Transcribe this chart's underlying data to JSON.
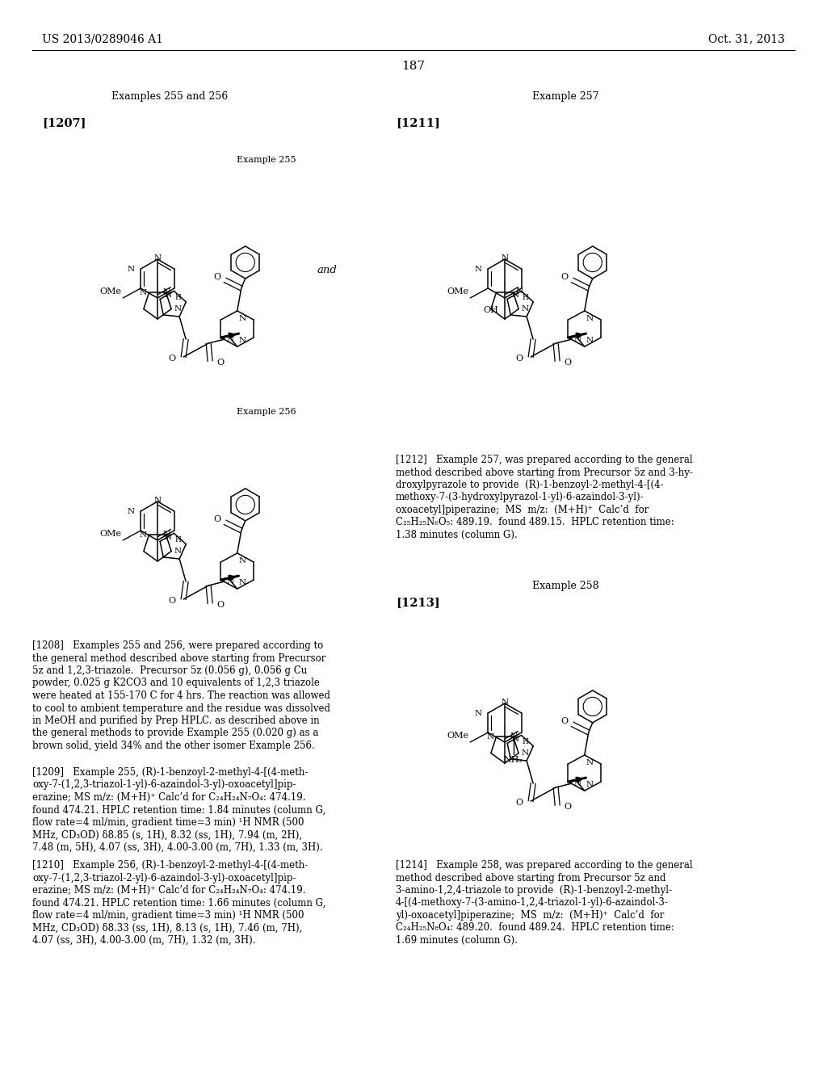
{
  "bg_color": "#ffffff",
  "header_left": "US 2013/0289046 A1",
  "header_right": "Oct. 31, 2013",
  "page_number": "187",
  "sec_left": "Examples 255 and 256",
  "sec_right": "Example 257",
  "lbl_1207": "[1207]",
  "lbl_1211": "[1211]",
  "lbl_1212": "[1212]",
  "lbl_1213": "[1213]",
  "ex255_lbl": "Example 255",
  "ex256_lbl": "Example 256",
  "ex258_lbl": "Example 258",
  "and_txt": "and",
  "t1212": [
    "[1212]   Example 257, was prepared according to the general",
    "method described above starting from Precursor 5z and 3-hy-",
    "droxylpyrazole to provide  (R)-1-benzoyl-2-methyl-4-[(4-",
    "methoxy-7-(3-hydroxylpyrazol-1-yl)-6-azaindol-3-yl)-",
    "oxoacetyl]piperazine;  MS  m/z:  (M+H)⁺  Calc’d  for",
    "C₂₅H₂₅N₆O₅: 489.19.  found 489.15.  HPLC retention time:",
    "1.38 minutes (column G)."
  ],
  "t1208": [
    "[1208]   Examples 255 and 256, were prepared according to",
    "the general method described above starting from Precursor",
    "5z and 1,2,3-triazole.  Precursor 5z (0.056 g), 0.056 g Cu",
    "powder, 0.025 g K2CO3 and 10 equivalents of 1,2,3 triazole",
    "were heated at 155-170 C for 4 hrs. The reaction was allowed",
    "to cool to ambient temperature and the residue was dissolved",
    "in MeOH and purified by Prep HPLC. as described above in",
    "the general methods to provide Example 255 (0.020 g) as a",
    "brown solid, yield 34% and the other isomer Example 256."
  ],
  "t1209": [
    "[1209]   Example 255, (R)-1-benzoyl-2-methyl-4-[(4-meth-",
    "oxy-7-(1,2,3-triazol-1-yl)-6-azaindol-3-yl)-oxoacetyl]pip-",
    "erazine; MS m/z: (M+H)⁺ Calc’d for C₂₄H₂₄N₇O₄: 474.19.",
    "found 474.21. HPLC retention time: 1.84 minutes (column G,",
    "flow rate=4 ml/min, gradient time=3 min) ¹H NMR (500",
    "MHz, CD₃OD) δ8.85 (s, 1H), 8.32 (ss, 1H), 7.94 (m, 2H),",
    "7.48 (m, 5H), 4.07 (ss, 3H), 4.00-3.00 (m, 7H), 1.33 (m, 3H)."
  ],
  "t1210": [
    "[1210]   Example 256, (R)-1-benzoyl-2-methyl-4-[(4-meth-",
    "oxy-7-(1,2,3-triazol-2-yl)-6-azaindol-3-yl)-oxoacetyl]pip-",
    "erazine; MS m/z: (M+H)⁺ Calc’d for C₂₄H₂₄N₇O₄: 474.19.",
    "found 474.21. HPLC retention time: 1.66 minutes (column G,",
    "flow rate=4 ml/min, gradient time=3 min) ¹H NMR (500",
    "MHz, CD₃OD) δ8.33 (ss, 1H), 8.13 (s, 1H), 7.46 (m, 7H),",
    "4.07 (ss, 3H), 4.00-3.00 (m, 7H), 1.32 (m, 3H)."
  ],
  "t1214": [
    "[1214]   Example 258, was prepared according to the general",
    "method described above starting from Precursor 5z and",
    "3-amino-1,2,4-triazole to provide  (R)-1-benzoyl-2-methyl-",
    "4-[(4-methoxy-7-(3-amino-1,2,4-triazol-1-yl)-6-azaindol-3-",
    "yl)-oxoacetyl]piperazine;  MS  m/z:  (M+H)⁺  Calc’d  for",
    "C₂₄H₂₅N₈O₄: 489.20.  found 489.24.  HPLC retention time:",
    "1.69 minutes (column G)."
  ]
}
